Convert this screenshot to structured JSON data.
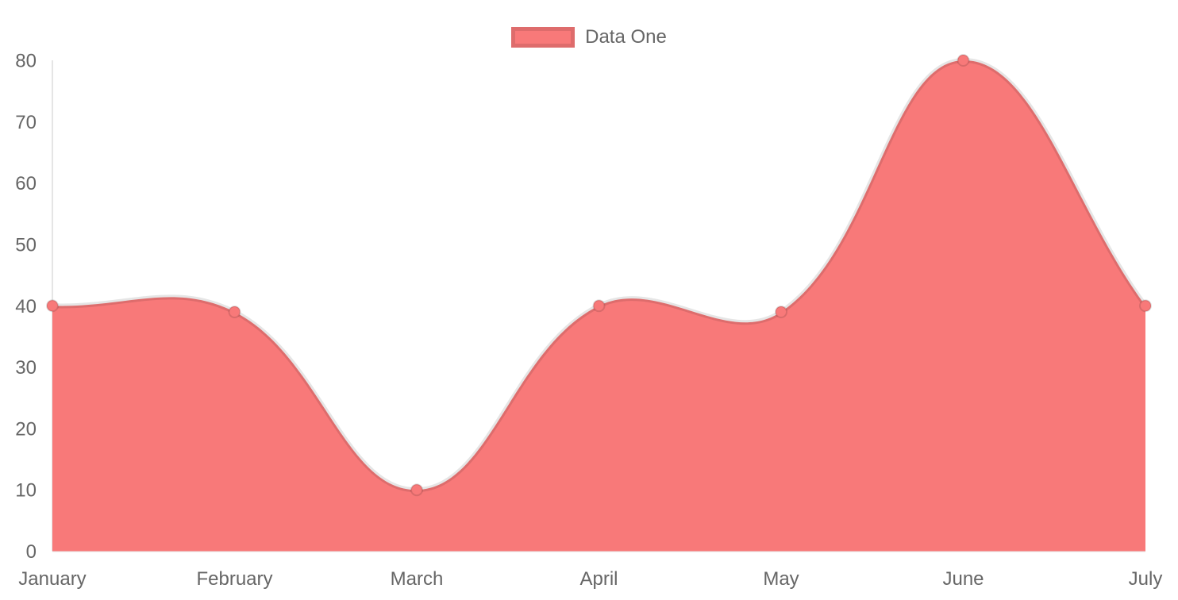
{
  "chart_data": {
    "type": "area",
    "title": "",
    "xlabel": "",
    "ylabel": "",
    "categories": [
      "January",
      "February",
      "March",
      "April",
      "May",
      "June",
      "July"
    ],
    "series": [
      {
        "name": "Data One",
        "values": [
          40,
          39,
          10,
          40,
          39,
          80,
          40
        ]
      }
    ],
    "ylim": [
      0,
      80
    ],
    "yticks": [
      0,
      10,
      20,
      30,
      40,
      50,
      60,
      70,
      80
    ],
    "grid": "none",
    "curve": "smooth",
    "legend_position": "top",
    "colors": {
      "fill": "#f87979",
      "line": "rgba(0,0,0,0.10)",
      "point_fill": "#f87979",
      "point_border": "rgba(0,0,0,0.12)",
      "axis_line": "rgba(0,0,0,0.10)",
      "tick_text": "#666666"
    }
  },
  "legend": {
    "label": "Data One"
  }
}
